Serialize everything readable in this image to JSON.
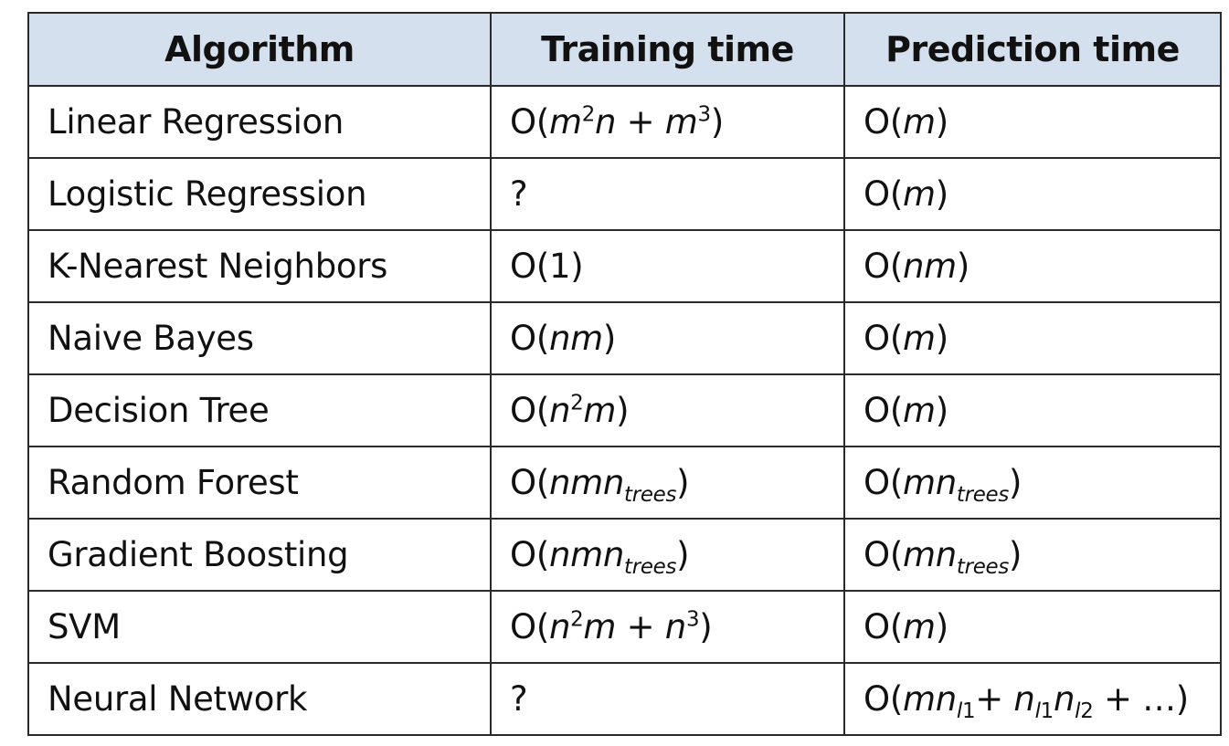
{
  "table": {
    "headers": [
      "Algorithm",
      "Training time",
      "Prediction time"
    ],
    "rows": [
      {
        "algorithm": "Linear Regression",
        "training": [
          {
            "t": "O"
          },
          {
            "t": "("
          },
          {
            "t": "m",
            "i": true
          },
          {
            "t": "2",
            "sup": true
          },
          {
            "t": "n",
            "i": true
          },
          {
            "t": " + "
          },
          {
            "t": "m",
            "i": true
          },
          {
            "t": "3",
            "sup": true
          },
          {
            "t": ")"
          }
        ],
        "prediction": [
          {
            "t": "O"
          },
          {
            "t": "("
          },
          {
            "t": "m",
            "i": true
          },
          {
            "t": ")"
          }
        ]
      },
      {
        "algorithm": "Logistic Regression",
        "training": [
          {
            "t": "?"
          }
        ],
        "prediction": [
          {
            "t": "O"
          },
          {
            "t": "("
          },
          {
            "t": "m",
            "i": true
          },
          {
            "t": ")"
          }
        ]
      },
      {
        "algorithm": "K-Nearest Neighbors",
        "training": [
          {
            "t": "O"
          },
          {
            "t": "(1)"
          }
        ],
        "prediction": [
          {
            "t": "O"
          },
          {
            "t": "("
          },
          {
            "t": "nm",
            "i": true
          },
          {
            "t": ")"
          }
        ]
      },
      {
        "algorithm": "Naive Bayes",
        "training": [
          {
            "t": "O"
          },
          {
            "t": "("
          },
          {
            "t": "nm",
            "i": true
          },
          {
            "t": ")"
          }
        ],
        "prediction": [
          {
            "t": "O"
          },
          {
            "t": "("
          },
          {
            "t": "m",
            "i": true
          },
          {
            "t": ")"
          }
        ]
      },
      {
        "algorithm": "Decision Tree",
        "training": [
          {
            "t": "O"
          },
          {
            "t": "("
          },
          {
            "t": "n",
            "i": true
          },
          {
            "t": "2",
            "sup": true
          },
          {
            "t": "m",
            "i": true
          },
          {
            "t": ")"
          }
        ],
        "prediction": [
          {
            "t": "O"
          },
          {
            "t": "("
          },
          {
            "t": "m",
            "i": true
          },
          {
            "t": ")"
          }
        ]
      },
      {
        "algorithm": "Random Forest",
        "training": [
          {
            "t": "O"
          },
          {
            "t": "("
          },
          {
            "t": "nmn",
            "i": true
          },
          {
            "t": "trees",
            "sub": true,
            "i": true
          },
          {
            "t": ")"
          }
        ],
        "prediction": [
          {
            "t": "O"
          },
          {
            "t": "("
          },
          {
            "t": "mn",
            "i": true
          },
          {
            "t": "trees",
            "sub": true,
            "i": true
          },
          {
            "t": ")"
          }
        ]
      },
      {
        "algorithm": "Gradient Boosting",
        "training": [
          {
            "t": "O"
          },
          {
            "t": "("
          },
          {
            "t": "nmn",
            "i": true
          },
          {
            "t": "trees",
            "sub": true,
            "i": true
          },
          {
            "t": ")"
          }
        ],
        "prediction": [
          {
            "t": "O"
          },
          {
            "t": "("
          },
          {
            "t": "mn",
            "i": true
          },
          {
            "t": "trees",
            "sub": true,
            "i": true
          },
          {
            "t": ")"
          }
        ]
      },
      {
        "algorithm": "SVM",
        "training": [
          {
            "t": "O"
          },
          {
            "t": "("
          },
          {
            "t": "n",
            "i": true
          },
          {
            "t": "2",
            "sup": true
          },
          {
            "t": "m",
            "i": true
          },
          {
            "t": " + "
          },
          {
            "t": "n",
            "i": true
          },
          {
            "t": "3",
            "sup": true
          },
          {
            "t": ")"
          }
        ],
        "prediction": [
          {
            "t": "O"
          },
          {
            "t": "("
          },
          {
            "t": "m",
            "i": true
          },
          {
            "t": ")"
          }
        ]
      },
      {
        "algorithm": "Neural Network",
        "training": [
          {
            "t": "?"
          }
        ],
        "prediction": [
          {
            "t": "O"
          },
          {
            "t": "("
          },
          {
            "t": "mn",
            "i": true
          },
          {
            "t": "l",
            "sub": true,
            "i": true
          },
          {
            "t": "1",
            "sub": true
          },
          {
            "t": "+ "
          },
          {
            "t": "n",
            "i": true
          },
          {
            "t": "l",
            "sub": true,
            "i": true
          },
          {
            "t": "1",
            "sub": true
          },
          {
            "t": "n",
            "i": true
          },
          {
            "t": "l",
            "sub": true,
            "i": true
          },
          {
            "t": "2",
            "sub": true
          },
          {
            "t": " + …)"
          }
        ]
      }
    ]
  },
  "colors": {
    "header_bg": "#d4e0ee",
    "border": "#2a2a2a",
    "text": "#111111"
  }
}
